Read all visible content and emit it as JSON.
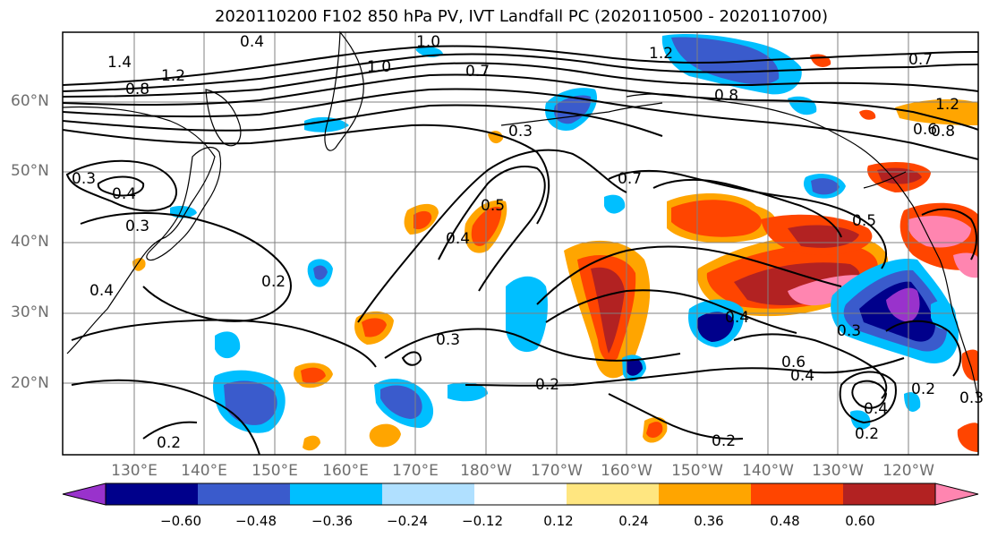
{
  "title": "2020110200 F102 850 hPa PV, IVT Landfall PC (2020110500 - 2020110700)",
  "lat_labels": [
    "60°N",
    "50°N",
    "40°N",
    "30°N",
    "20°N"
  ],
  "lon_labels": [
    "130°E",
    "140°E",
    "150°E",
    "160°E",
    "170°E",
    "180°W",
    "170°W",
    "160°W",
    "150°W",
    "140°W",
    "130°W",
    "120°W"
  ],
  "colorbar": {
    "ticks": [
      "−0.60",
      "−0.48",
      "−0.36",
      "−0.24",
      "−0.12",
      "0.12",
      "0.24",
      "0.36",
      "0.48",
      "0.60"
    ],
    "colors": [
      "#9932CC",
      "#00008B",
      "#3A5BCC",
      "#00BFFF",
      "#B0E0FF",
      "#FFFFFF",
      "#FFE680",
      "#FFA500",
      "#FF4500",
      "#B22222",
      "#FF85B0"
    ]
  },
  "contour_labels": [
    "0.4",
    "0.8",
    "1.0",
    "1.2",
    "1.4",
    "1.2",
    "1.0",
    "0.7",
    "0.8",
    "0.3",
    "0.4",
    "0.3",
    "0.2",
    "0.4",
    "0.2",
    "0.3",
    "0.5",
    "0.4",
    "0.7",
    "0.3",
    "0.2",
    "0.4",
    "0.5",
    "0.6",
    "0.4",
    "0.3",
    "0.2",
    "0.2",
    "0.4",
    "0.2",
    "0.3",
    "0.6",
    "0.8",
    "1.2",
    "0.7"
  ]
}
